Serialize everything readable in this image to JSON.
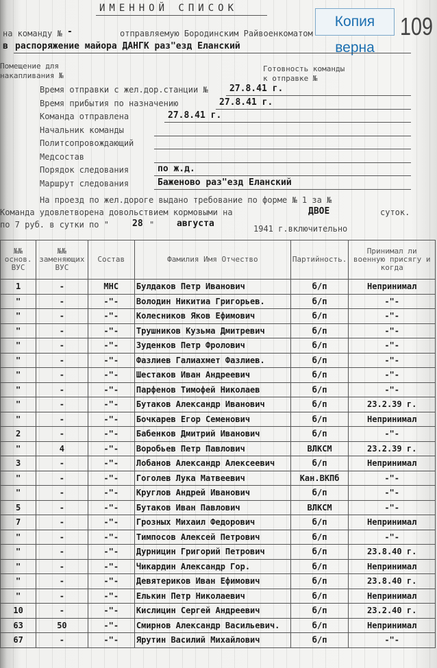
{
  "header": {
    "title": "ИМЕННОЙ СПИСОК",
    "stamp": "Копия верна",
    "folio": "109",
    "line1_label": "на команду №",
    "line1_value": "-",
    "line1_rest": "отправляемую Бородинским Райвоенкоматом",
    "line2_prefix": "в",
    "line2_value": "распоряжение майора ДАНГК раз\"езд Еланский",
    "room_label_1": "Помещение для",
    "room_label_2": "накапливания №",
    "ready_label_1": "Готовность команды",
    "ready_label_2": "к отправке №"
  },
  "fields": [
    {
      "label": "Время отправки с жел.дор.станции №",
      "value": "27.8.41 г."
    },
    {
      "label": "Время прибытия по назначению",
      "value": "27.8.41 г."
    },
    {
      "label": "Команда отправлена",
      "value": "27.8.41 г."
    },
    {
      "label": "Начальник команды",
      "value": ""
    },
    {
      "label": "Политсопровождающий",
      "value": ""
    },
    {
      "label": "Медсостав",
      "value": ""
    },
    {
      "label": "Порядок следования",
      "value": "по ж.д."
    },
    {
      "label": "Маршрут следования",
      "value": "Баженово раз\"езд Еланский"
    }
  ],
  "travel": "На проезд по жел.дороге выдано требование по форме № 1 за №",
  "rations": {
    "text1": "Команда удовлетворена довольствием кормовыми на",
    "days": "ДВОЕ",
    "text2": "суток.",
    "text3": "по 7 руб. в сутки по \"",
    "day": "28",
    "text4": "\"",
    "month": "августа",
    "text5": "1941 г.включительно"
  },
  "table": {
    "columns": [
      "№№ основ. ВУС",
      "№№ заменяющих ВУС",
      "Состав",
      "Фамилия Имя Отчество",
      "Партийность.",
      "Принимал ли военную присягу и когда"
    ],
    "rows": [
      [
        "1",
        "-",
        "МНС",
        "Булдаков Петр Иванович",
        "б/п",
        "Непринимал"
      ],
      [
        "\"",
        "-",
        "-\"-",
        "Володин Никитиа Григорьев.",
        "б/п",
        "-\"-"
      ],
      [
        "\"",
        "-",
        "-\"-",
        "Колесников Яков Ефимович",
        "б/п",
        "-\"-"
      ],
      [
        "\"",
        "-",
        "-\"-",
        "Трушников Кузьма Дмитревич",
        "б/п",
        "-\"-"
      ],
      [
        "\"",
        "-",
        "-\"-",
        "Зуденков Петр Фролович",
        "б/п",
        "-\"-"
      ],
      [
        "\"",
        "-",
        "-\"-",
        "Фазлиев Галиахмет Фазлиев.",
        "б/п",
        "-\"-"
      ],
      [
        "\"",
        "-",
        "-\"-",
        "Шестаков Иван Андреевич",
        "б/п",
        "-\"-"
      ],
      [
        "\"",
        "-",
        "-\"-",
        "Парфенов Тимофей Николаев",
        "б/п",
        "-\"-"
      ],
      [
        "\"",
        "-",
        "-\"-",
        "Бутаков Александр Иванович",
        "б/п",
        "23.2.39 г."
      ],
      [
        "\"",
        "-",
        "-\"-",
        "Бочкарев Егор Семенович",
        "б/п",
        "Непринимал"
      ],
      [
        "2",
        "-",
        "-\"-",
        "Бабенков Дмитрий Иванович",
        "б/п",
        "-\"-"
      ],
      [
        "\"",
        "4",
        "-\"-",
        "Воробьев Петр Павлович",
        "ВЛКСМ",
        "23.2.39 г."
      ],
      [
        "3",
        "-",
        "-\"-",
        "Лобанов Александр Алексеевич",
        "б/п",
        "Непринимал"
      ],
      [
        "\"",
        "-",
        "-\"-",
        "Гоголев Лука Матвеевич",
        "Кан.ВКПб",
        "-\"-"
      ],
      [
        "\"",
        "-",
        "-\"-",
        "Круглов Андрей Иванович",
        "б/п",
        "-\"-"
      ],
      [
        "5",
        "-",
        "-\"-",
        "Бутаков Иван Павлович",
        "ВЛКСМ",
        "-\"-"
      ],
      [
        "7",
        "-",
        "-\"-",
        "Грозных Михаил Федорович",
        "б/п",
        "Непринимал"
      ],
      [
        "\"",
        "-",
        "-\"-",
        "Тимпосов Алексей Петрович",
        "б/п",
        "-\"-"
      ],
      [
        "\"",
        "-",
        "-\"-",
        "Дурницин Григорий Петрович",
        "б/п",
        "23.8.40 г."
      ],
      [
        "\"",
        "-",
        "-\"-",
        "Чикардин Александр Гор.",
        "б/п",
        "Непринимал"
      ],
      [
        "\"",
        "-",
        "-\"-",
        "Девятериков Иван Ефимович",
        "б/п",
        "23.8.40 г."
      ],
      [
        "\"",
        "-",
        "-\"-",
        "Елькин Петр Николаевич",
        "б/п",
        "Непринимал"
      ],
      [
        "10",
        "-",
        "-\"-",
        "Кислицин Сергей Андреевич",
        "б/п",
        "23.2.40 г."
      ],
      [
        "63",
        "50",
        "-\"-",
        "Смирнов Александр Васильевич.",
        "б/п",
        "Непринимал"
      ],
      [
        "67",
        "-",
        "-\"-",
        "Ярутин Василий Михайлович",
        "б/п",
        "-\"-"
      ]
    ]
  }
}
